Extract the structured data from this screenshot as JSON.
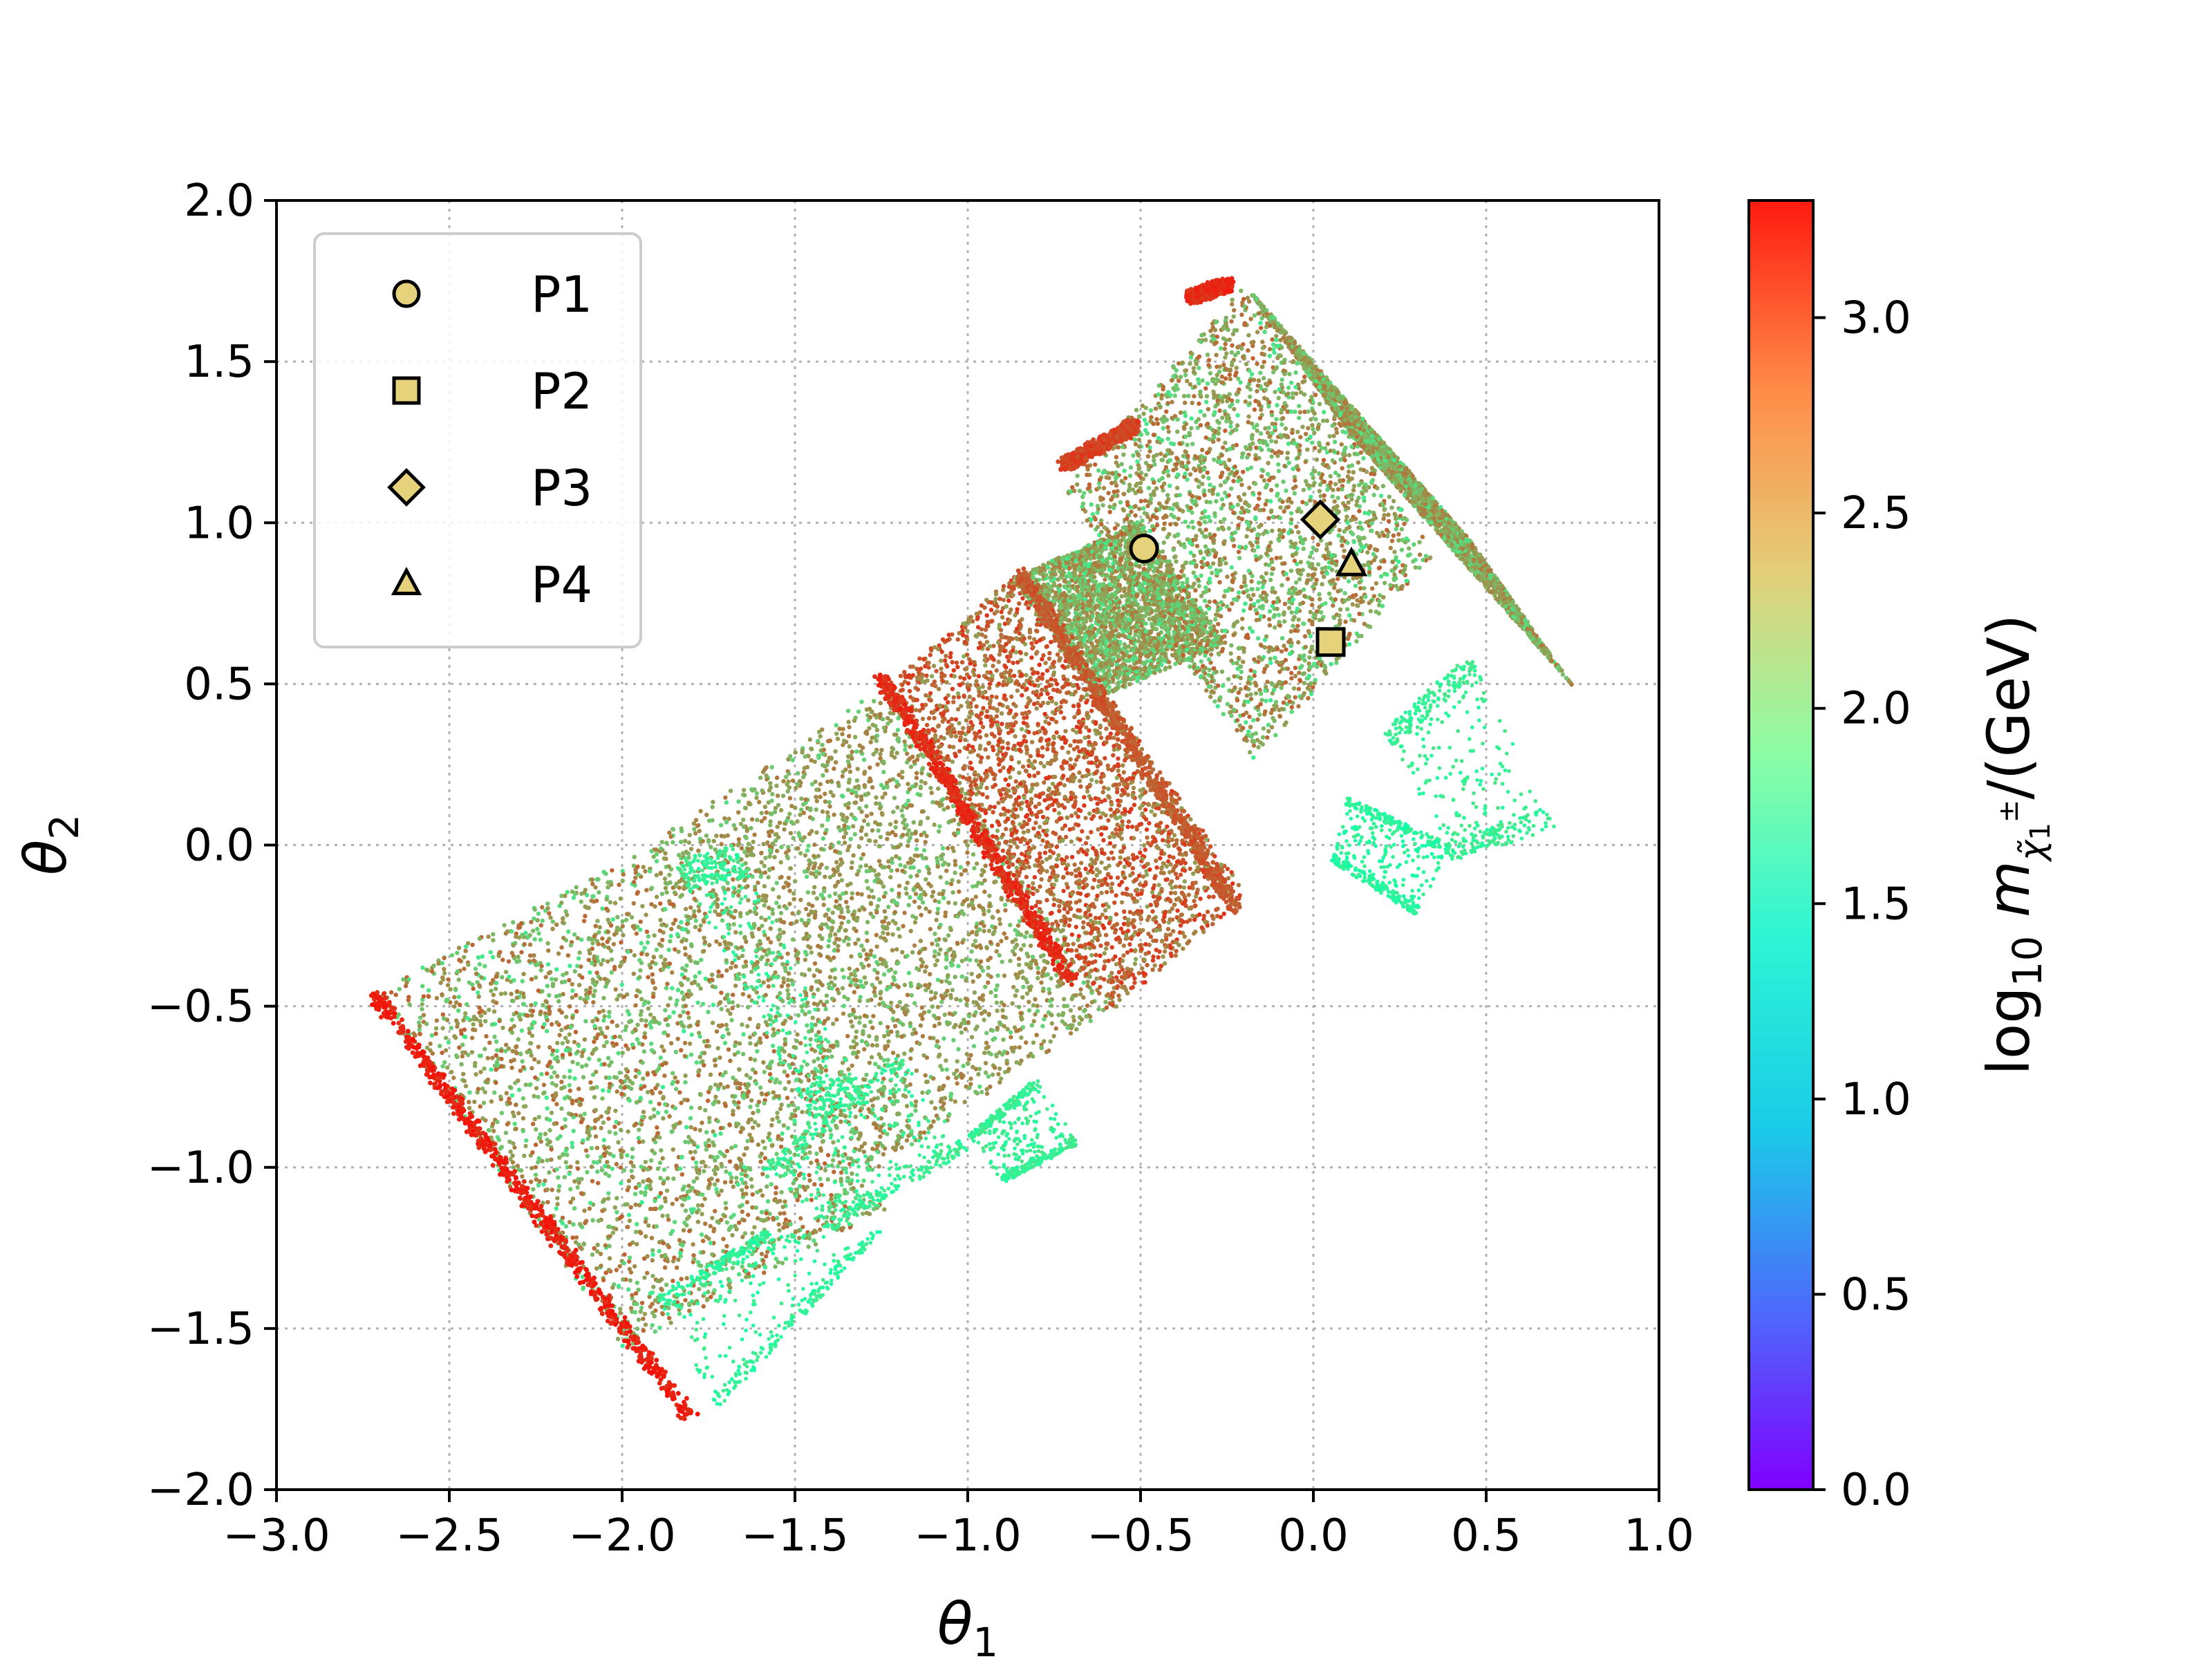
{
  "chart_data": {
    "type": "scatter",
    "xlabel": "θ1",
    "ylabel": "θ2",
    "xlim": [
      -3.0,
      1.0
    ],
    "ylim": [
      -2.0,
      2.0
    ],
    "xticks": [
      "−3.0",
      "−2.5",
      "−2.0",
      "−1.5",
      "−1.0",
      "−0.5",
      "0.0",
      "0.5",
      "1.0"
    ],
    "yticks": [
      "−2.0",
      "−1.5",
      "−1.0",
      "−0.5",
      "0.0",
      "0.5",
      "1.0",
      "1.5",
      "2.0"
    ],
    "grid": true,
    "legend_position": "upper-left",
    "colorbar": {
      "label": "log10 mχ̃1± /(GeV)",
      "range": [
        0.0,
        3.3
      ],
      "ticks": [
        "0.0",
        "0.5",
        "1.0",
        "1.5",
        "2.0",
        "2.5",
        "3.0"
      ],
      "colormap": "rainbow"
    },
    "scan_regions": [
      {
        "band_top": [
          [
            -2.72,
            -0.46
          ],
          [
            -1.95,
            -0.02
          ]
        ],
        "depth": 1.32,
        "value_range": [
          2.0,
          2.9
        ]
      },
      {
        "band_top": [
          [
            -1.95,
            -0.02
          ],
          [
            -1.23,
            0.5
          ]
        ],
        "depth": 1.2,
        "value_range": [
          2.2,
          2.8
        ]
      },
      {
        "band_top": [
          [
            -1.25,
            0.48
          ],
          [
            -0.85,
            0.85
          ]
        ],
        "depth": 1.2,
        "value_range": [
          2.5,
          3.1
        ]
      },
      {
        "band_top": [
          [
            -0.87,
            0.83
          ],
          [
            -0.5,
            1.0
          ]
        ],
        "depth": 0.45,
        "value_range": [
          2.0,
          2.8
        ]
      },
      {
        "band_top": [
          [
            -0.72,
            1.1
          ],
          [
            -0.2,
            1.74
          ]
        ],
        "depth": 1.0,
        "value_range": [
          2.0,
          2.9
        ]
      },
      {
        "band_top": [
          [
            -0.2,
            1.74
          ],
          [
            0.45,
            0.95
          ]
        ],
        "depth": 0.55,
        "value_range": [
          2.1,
          2.8
        ]
      }
    ],
    "edge_strips": [
      {
        "from": [
          -2.72,
          -0.46
        ],
        "to": [
          -1.8,
          -1.78
        ],
        "value": 3.25
      },
      {
        "from": [
          -1.25,
          0.52
        ],
        "to": [
          -0.7,
          -0.42
        ],
        "value": 3.2
      },
      {
        "from": [
          -0.85,
          0.85
        ],
        "to": [
          -0.22,
          -0.2
        ],
        "value": 3.0
      },
      {
        "from": [
          -0.72,
          1.18
        ],
        "to": [
          -0.52,
          1.3
        ],
        "value": 3.1
      },
      {
        "from": [
          -0.35,
          1.7
        ],
        "to": [
          -0.25,
          1.74
        ],
        "value": 3.2
      }
    ],
    "sparse_regions": [
      {
        "points": [
          [
            -1.85,
            -0.05
          ],
          [
            -1.68,
            0.0
          ],
          [
            -1.28,
            -0.8
          ],
          [
            -1.45,
            -0.85
          ]
        ],
        "value": 2.0
      },
      {
        "points": [
          [
            -1.9,
            -1.4
          ],
          [
            -1.6,
            -1.2
          ],
          [
            -1.25,
            -1.2
          ],
          [
            -1.72,
            -1.75
          ]
        ],
        "value": 1.95
      },
      {
        "points": [
          [
            -1.6,
            -1.0
          ],
          [
            -1.2,
            -0.65
          ],
          [
            -1.0,
            -0.95
          ],
          [
            -1.4,
            -1.2
          ]
        ],
        "value": 2.0
      },
      {
        "points": [
          [
            -1.0,
            -0.9
          ],
          [
            -0.8,
            -0.72
          ],
          [
            -0.68,
            -0.93
          ],
          [
            -0.9,
            -1.05
          ]
        ],
        "value": 2.0
      },
      {
        "points": [
          [
            0.2,
            0.35
          ],
          [
            0.45,
            0.6
          ],
          [
            0.7,
            0.05
          ],
          [
            0.4,
            -0.05
          ]
        ],
        "value": 2.0
      },
      {
        "points": [
          [
            0.1,
            0.15
          ],
          [
            0.4,
            0.0
          ],
          [
            0.3,
            -0.22
          ],
          [
            0.05,
            -0.05
          ]
        ],
        "value": 1.9
      }
    ],
    "series": [
      {
        "name": "P1",
        "marker": "circle",
        "x": [
          -0.49
        ],
        "y": [
          0.92
        ]
      },
      {
        "name": "P2",
        "marker": "square",
        "x": [
          0.05
        ],
        "y": [
          0.63
        ]
      },
      {
        "name": "P3",
        "marker": "diamond",
        "x": [
          0.02
        ],
        "y": [
          1.01
        ]
      },
      {
        "name": "P4",
        "marker": "triangle",
        "x": [
          0.11
        ],
        "y": [
          0.87
        ]
      }
    ],
    "marker_fill": "#e6d27a",
    "colors": {
      "grid": "#b0b0b0",
      "frame": "#000000",
      "legend_border": "#cccccc"
    }
  }
}
